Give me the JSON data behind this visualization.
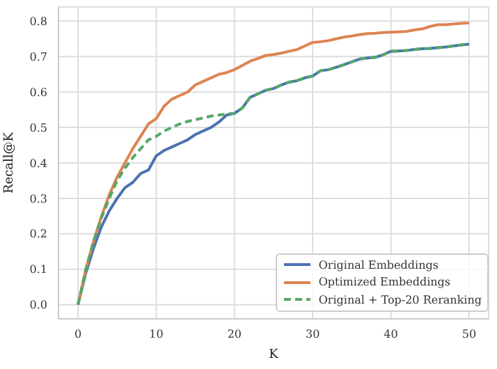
{
  "chart_data": {
    "type": "line",
    "xlabel": "K",
    "ylabel": "Recall@K",
    "x": [
      0,
      1,
      2,
      3,
      4,
      5,
      6,
      7,
      8,
      9,
      10,
      11,
      12,
      13,
      14,
      15,
      16,
      17,
      18,
      19,
      20,
      21,
      22,
      23,
      24,
      25,
      26,
      27,
      28,
      29,
      30,
      31,
      32,
      33,
      34,
      35,
      36,
      37,
      38,
      39,
      40,
      41,
      42,
      43,
      44,
      45,
      46,
      47,
      48,
      49,
      50
    ],
    "series": [
      {
        "name": "Original Embeddings",
        "color": "#4c72b0",
        "line_style": "solid",
        "values": [
          0,
          0.09,
          0.16,
          0.22,
          0.265,
          0.3,
          0.33,
          0.345,
          0.37,
          0.38,
          0.42,
          0.435,
          0.445,
          0.455,
          0.465,
          0.48,
          0.49,
          0.5,
          0.515,
          0.535,
          0.54,
          0.555,
          0.585,
          0.595,
          0.605,
          0.61,
          0.62,
          0.628,
          0.632,
          0.64,
          0.645,
          0.66,
          0.663,
          0.67,
          0.677,
          0.685,
          0.693,
          0.696,
          0.698,
          0.705,
          0.715,
          0.716,
          0.717,
          0.72,
          0.722,
          0.723,
          0.725,
          0.727,
          0.73,
          0.733,
          0.735
        ]
      },
      {
        "name": "Optimized Embeddings",
        "color": "#dd8452",
        "line_style": "solid",
        "values": [
          0,
          0.1,
          0.18,
          0.25,
          0.31,
          0.36,
          0.4,
          0.44,
          0.475,
          0.51,
          0.525,
          0.56,
          0.58,
          0.59,
          0.6,
          0.62,
          0.63,
          0.64,
          0.65,
          0.655,
          0.663,
          0.675,
          0.687,
          0.695,
          0.703,
          0.706,
          0.71,
          0.715,
          0.72,
          0.73,
          0.74,
          0.742,
          0.745,
          0.75,
          0.755,
          0.758,
          0.762,
          0.765,
          0.766,
          0.768,
          0.769,
          0.77,
          0.771,
          0.775,
          0.778,
          0.785,
          0.79,
          0.79,
          0.792,
          0.794,
          0.795
        ]
      },
      {
        "name": "Original + Top-20 Reranking",
        "color": "#55a868",
        "line_style": "dashed",
        "values": [
          0,
          0.1,
          0.18,
          0.245,
          0.3,
          0.35,
          0.385,
          0.415,
          0.44,
          0.465,
          0.475,
          0.49,
          0.5,
          0.51,
          0.517,
          0.522,
          0.527,
          0.532,
          0.535,
          0.538,
          0.54,
          0.555,
          0.585,
          0.595,
          0.605,
          0.61,
          0.62,
          0.628,
          0.632,
          0.64,
          0.645,
          0.66,
          0.663,
          0.67,
          0.677,
          0.685,
          0.693,
          0.696,
          0.698,
          0.705,
          0.715,
          0.716,
          0.717,
          0.72,
          0.722,
          0.723,
          0.725,
          0.727,
          0.73,
          0.733,
          0.735
        ]
      }
    ],
    "xlim": [
      -2.5,
      52.5
    ],
    "xticks": [
      0,
      10,
      20,
      30,
      40,
      50
    ],
    "ylim": [
      -0.04,
      0.84
    ],
    "yticks": [
      {
        "value": 0,
        "label": "0.0"
      },
      0.1,
      0.2,
      0.3,
      0.4,
      0.5,
      0.6,
      0.7,
      0.8
    ],
    "grid": true,
    "legend": "bottom right",
    "marker": "none"
  }
}
